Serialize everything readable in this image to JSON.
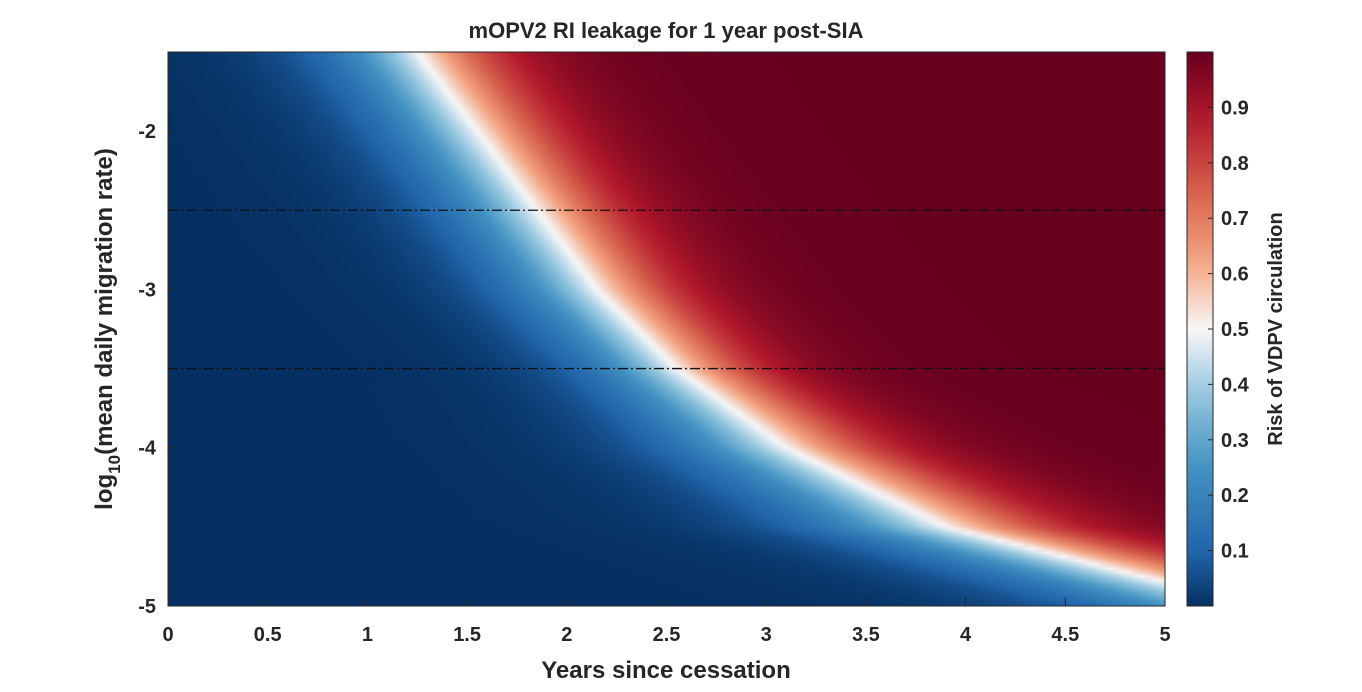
{
  "chart_data": {
    "type": "heatmap",
    "title": "mOPV2 RI leakage for 1 year post-SIA",
    "xlabel": "Years since cessation",
    "ylabel": {
      "prefix": "log",
      "subscript": "10",
      "suffix": "(mean daily migration rate)"
    },
    "xlim": [
      0,
      5
    ],
    "ylim": [
      -5,
      -1.5
    ],
    "x_ticks": [
      "0",
      "0.5",
      "1",
      "1.5",
      "2",
      "2.5",
      "3",
      "3.5",
      "4",
      "4.5",
      "5"
    ],
    "y_ticks": [
      "-2",
      "-3",
      "-4",
      "-5"
    ],
    "colorbar": {
      "label": "Risk of VDPV circulation",
      "range": [
        0,
        1
      ],
      "ticks": [
        "0.1",
        "0.2",
        "0.3",
        "0.4",
        "0.5",
        "0.6",
        "0.7",
        "0.8",
        "0.9"
      ],
      "colormap": "diverging blue-white-red",
      "colors": {
        "low": "#053061",
        "mid": "#f7f7f7",
        "high": "#67001f"
      }
    },
    "contour_0_5": {
      "description_points": [
        {
          "y": -1.5,
          "x": 1.25
        },
        {
          "y": -2.0,
          "x": 1.55
        },
        {
          "y": -2.5,
          "x": 1.85
        },
        {
          "y": -3.0,
          "x": 2.15
        },
        {
          "y": -3.5,
          "x": 2.55
        },
        {
          "y": -4.0,
          "x": 3.1
        },
        {
          "y": -4.5,
          "x": 3.9
        },
        {
          "y": -4.85,
          "x": 5.0
        }
      ]
    },
    "reference_lines": [
      {
        "y": -2.5,
        "style": "dash-dot"
      },
      {
        "y": -3.5,
        "style": "dash-dot"
      }
    ]
  }
}
